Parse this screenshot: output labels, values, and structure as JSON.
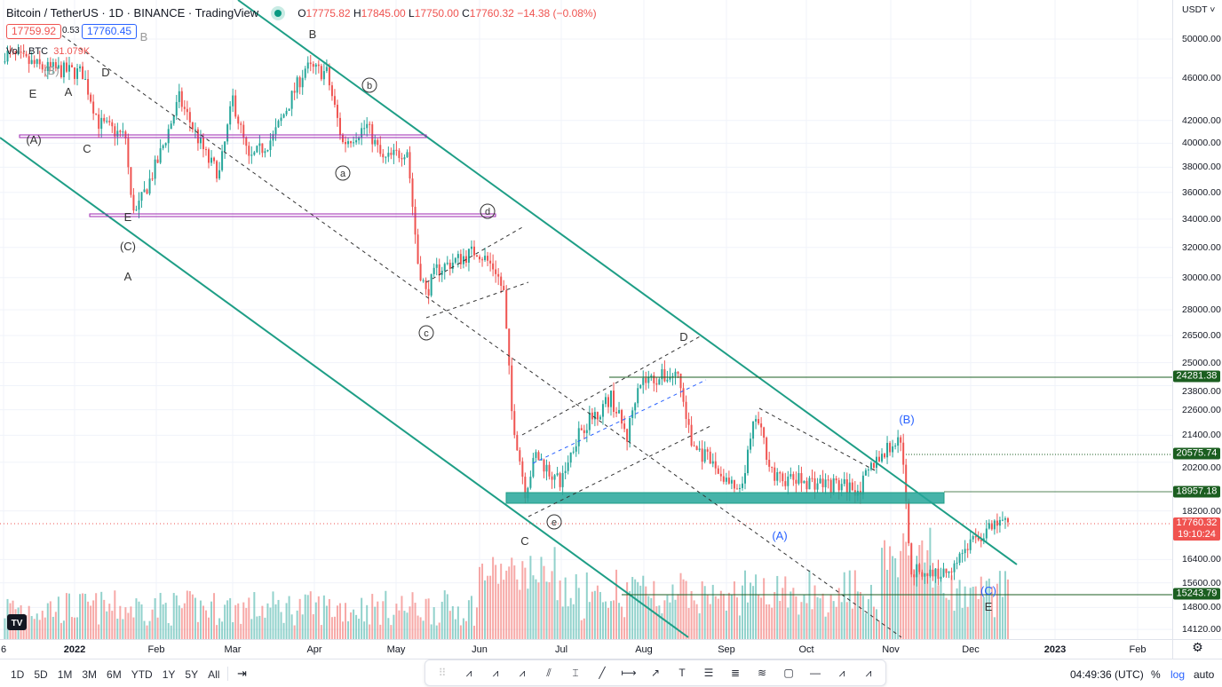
{
  "header": {
    "title": "Bitcoin / TetherUS · 1D · BINANCE · TradingView",
    "o_label": "O",
    "o": "17775.82",
    "h_label": "H",
    "h": "17845.00",
    "l_label": "L",
    "l": "17750.00",
    "c_label": "C",
    "c": "17760.32",
    "change": "−14.38 (−0.08%)",
    "bid": "17759.92",
    "spread": "0.53",
    "ask": "17760.45",
    "vol_label": "Vol · BTC",
    "vol": "31.079K"
  },
  "price_axis": {
    "currency": "USDT ˅",
    "current_time_left": "19:10:24"
  },
  "time_axis": {
    "timezone": "04:49:36 (UTC)",
    "percent": "%",
    "log": "log",
    "auto": "auto"
  },
  "range_buttons": [
    "1D",
    "5D",
    "1M",
    "3M",
    "6M",
    "YTD",
    "1Y",
    "5Y",
    "All"
  ],
  "toolbar": [
    "drag-handle",
    "abcde-pattern",
    "abc-pattern",
    "elliott-impulse",
    "parallel-channel",
    "price-range",
    "trend-line",
    "date-range",
    "arrow",
    "text",
    "horizontal-lines",
    "fib-retracement",
    "fib-channel",
    "rectangle",
    "horizontal-ray",
    "wxyxz",
    "wxy"
  ],
  "wave_labels": [
    "(B)",
    "B",
    "E",
    "A",
    "D",
    "C",
    "(A)",
    "B",
    "b",
    "a",
    "d",
    "E",
    "(C)",
    "A",
    "c",
    "D",
    "e",
    "C",
    "(A)",
    "(B)",
    "(C)",
    "E"
  ],
  "colors": {
    "up": "#26a69a",
    "down": "#ef5350",
    "channel": "#1e9e86",
    "purple": "#9c27b0",
    "level": "#1b5e20",
    "blue": "#2962ff"
  },
  "chart_data": {
    "type": "candlestick",
    "title": "Bitcoin / TetherUS · 1D · BINANCE",
    "yscale": "log",
    "ylim": [
      14120,
      50000
    ],
    "y_ticks": [
      "50000.00",
      "46000.00",
      "42000.00",
      "40000.00",
      "38000.00",
      "36000.00",
      "34000.00",
      "32000.00",
      "30000.00",
      "28000.00",
      "26500.00",
      "25000.00",
      "23800.00",
      "22600.00",
      "21400.00",
      "20200.00",
      "18200.00",
      "16400.00",
      "15600.00",
      "14800.00",
      "14120.00"
    ],
    "x_ticks": [
      "6",
      "2022",
      "Feb",
      "Mar",
      "Apr",
      "May",
      "Jun",
      "Jul",
      "Aug",
      "Sep",
      "Oct",
      "Nov",
      "Dec",
      "2023",
      "Feb"
    ],
    "price_lines": [
      {
        "label": "24281.38",
        "value": 24281.38
      },
      {
        "label": "20575.74",
        "value": 20575.74
      },
      {
        "label": "18957.18",
        "value": 18957.18
      },
      {
        "label": "17760.32",
        "value": 17760.32
      },
      {
        "label": "15243.79",
        "value": 15243.79
      }
    ],
    "approx_closes": [
      [
        "2021-12-06",
        48500
      ],
      [
        "2021-12-20",
        47000
      ],
      [
        "2022-01-04",
        46500
      ],
      [
        "2022-01-10",
        41800
      ],
      [
        "2022-01-20",
        40500
      ],
      [
        "2022-01-22",
        35500
      ],
      [
        "2022-01-24",
        34500
      ],
      [
        "2022-02-01",
        38500
      ],
      [
        "2022-02-09",
        44000
      ],
      [
        "2022-02-20",
        38500
      ],
      [
        "2022-02-24",
        37500
      ],
      [
        "2022-03-01",
        44000
      ],
      [
        "2022-03-07",
        38500
      ],
      [
        "2022-03-16",
        40500
      ],
      [
        "2022-03-28",
        47000
      ],
      [
        "2022-04-05",
        46500
      ],
      [
        "2022-04-11",
        40000
      ],
      [
        "2022-04-20",
        41500
      ],
      [
        "2022-04-26",
        38500
      ],
      [
        "2022-05-05",
        39500
      ],
      [
        "2022-05-09",
        31000
      ],
      [
        "2022-05-12",
        29000
      ],
      [
        "2022-05-16",
        30500
      ],
      [
        "2022-05-31",
        31800
      ],
      [
        "2022-06-07",
        30500
      ],
      [
        "2022-06-10",
        29000
      ],
      [
        "2022-06-13",
        22500
      ],
      [
        "2022-06-18",
        19000
      ],
      [
        "2022-06-22",
        20500
      ],
      [
        "2022-07-01",
        19300
      ],
      [
        "2022-07-08",
        21600
      ],
      [
        "2022-07-20",
        23200
      ],
      [
        "2022-07-26",
        21300
      ],
      [
        "2022-07-30",
        24000
      ],
      [
        "2022-08-14",
        24400
      ],
      [
        "2022-08-19",
        21000
      ],
      [
        "2022-08-26",
        20200
      ],
      [
        "2022-09-06",
        18800
      ],
      [
        "2022-09-12",
        22300
      ],
      [
        "2022-09-19",
        19500
      ],
      [
        "2022-10-01",
        19400
      ],
      [
        "2022-10-21",
        19100
      ],
      [
        "2022-10-26",
        20200
      ],
      [
        "2022-11-05",
        21300
      ],
      [
        "2022-11-09",
        16000
      ],
      [
        "2022-11-21",
        15900
      ],
      [
        "2022-12-01",
        17000
      ],
      [
        "2022-12-13",
        17800
      ],
      [
        "2022-12-15",
        17760.32
      ]
    ]
  }
}
